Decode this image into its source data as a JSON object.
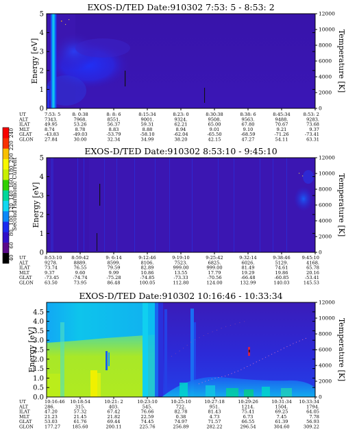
{
  "chart_data": {
    "type": "heatmap",
    "colorbar": {
      "title": "Second Harmonic Current",
      "ticks": [
        "40",
        "60",
        "80",
        "100",
        "120",
        "140",
        "160",
        "180",
        "200",
        "220",
        "240"
      ],
      "colors": [
        "#000000",
        "#5a0a8a",
        "#3010c8",
        "#1a2cf0",
        "#0a88f8",
        "#10d8f0",
        "#00d89a",
        "#30d000",
        "#c8f000",
        "#f8f800",
        "#f8c000",
        "#f83000",
        "#f80000"
      ]
    },
    "panels": [
      {
        "title": "EXOS-D/TED  Date:910302  7:53: 5 - 8:53: 2",
        "ylabel": "Energy [eV]",
        "y2label": "Temperature [K]",
        "ylim": [
          0,
          5
        ],
        "yticks": [
          "0",
          "1",
          "2",
          "3",
          "4",
          "5"
        ],
        "y2lim": [
          0,
          12000
        ],
        "y2ticks": [
          "0",
          "2000",
          "4000",
          "6000",
          "8000",
          "10000",
          "12000"
        ],
        "rows": [
          {
            "name": "UT",
            "values": [
              "7:53: 5",
              "8: 0:38",
              "8: 8: 6",
              "8:15:34",
              "8:23: 0",
              "8:30:38",
              "8:38: 6",
              "8:45:34",
              "8:53: 2"
            ]
          },
          {
            "name": "ALT",
            "values": [
              "7343.",
              "7968.",
              "8551.",
              "9001.",
              "9324.",
              "9508.",
              "9563.",
              "9488.",
              "9283."
            ]
          },
          {
            "name": "ILAT",
            "values": [
              "49.95",
              "53.26",
              "56.37",
              "59.31",
              "62.21",
              "65.00",
              "67.80",
              "70.67",
              "73.68"
            ]
          },
          {
            "name": "MLT",
            "values": [
              "8.74",
              "8.78",
              "8.83",
              "8.88",
              "8.94",
              "9.01",
              "9.10",
              "9.21",
              "9.37"
            ]
          },
          {
            "name": "GLAT",
            "values": [
              "-43.83",
              "-49.03",
              "-53.79",
              "-58.10",
              "-62.04",
              "-65.50",
              "-68.59",
              "-71.26",
              "-73.41"
            ]
          },
          {
            "name": "GLON",
            "values": [
              "27.84",
              "30.00",
              "32.34",
              "34.99",
              "38.20",
              "42.15",
              "47.27",
              "54.11",
              "63.31"
            ]
          }
        ]
      },
      {
        "title": "EXOS-D/TED  Date:910302  8:53:10 - 9:45:10",
        "ylabel": "Energy [eV]",
        "y2label": "Temperature [K]",
        "ylim": [
          0,
          5
        ],
        "yticks": [
          "0",
          "1",
          "2",
          "3",
          "4",
          "5"
        ],
        "y2lim": [
          0,
          12000
        ],
        "y2ticks": [
          "0",
          "2000",
          "4000",
          "6000",
          "8000",
          "10000",
          "12000"
        ],
        "rows": [
          {
            "name": "UT",
            "values": [
              "8:53:10",
              "8:59:42",
              "9: 6:14",
              "9:12:46",
              "9:19:10",
              "9:25:42",
              "9:32:14",
              "9:38:46",
              "9:45:10"
            ]
          },
          {
            "name": "ALT",
            "values": [
              "9278.",
              "8889.",
              "8599.",
              "8106.",
              "7523.",
              "6825.",
              "6026.",
              "5129.",
              "4168."
            ]
          },
          {
            "name": "ILAT",
            "values": [
              "73.74",
              "76.55",
              "79.59",
              "82.89",
              "999.00",
              "999.00",
              "81.49",
              "74.61",
              "65.78"
            ]
          },
          {
            "name": "MLT",
            "values": [
              "9.37",
              "9.60",
              "9.99",
              "10.86",
              "13.55",
              "17.79",
              "19.29",
              "19.86",
              "20.16"
            ]
          },
          {
            "name": "GLAT",
            "values": [
              "-73.45",
              "-74.74",
              "-75.28",
              "-74.85",
              "-73.33",
              "-70.56",
              "-66.48",
              "-60.85",
              "-53.41"
            ]
          },
          {
            "name": "GLON",
            "values": [
              "63.50",
              "73.95",
              "86.48",
              "100.05",
              "112.80",
              "124.00",
              "132.99",
              "140.03",
              "145.53"
            ]
          }
        ]
      },
      {
        "title": "EXOS-D/TED  Date:910302  10:16:46 - 10:33:34",
        "ylabel": "Energy [eV]",
        "y2label": "Temperature [K]",
        "ylim": [
          0,
          5
        ],
        "yticks": [
          "0.0",
          "0.5",
          "1.0",
          "1.5",
          "2.0",
          "2.5",
          "3.0",
          "3.5",
          "4.0",
          "4.5"
        ],
        "y2lim": [
          0,
          12000
        ],
        "y2ticks": [
          "0",
          "2000",
          "4000",
          "6000",
          "8000",
          "10000",
          "12000"
        ],
        "rows": [
          {
            "name": "UT",
            "values": [
              "10:16:46",
              "10:18:54",
              "10:21: 2",
              "10:23:10",
              "10:25:10",
              "10:27:18",
              "10:29:26",
              "10:31:34",
              "10:33:34"
            ]
          },
          {
            "name": "ALT",
            "values": [
              "286.",
              "315.",
              "403.",
              "545.",
              "722.",
              "951.",
              "1214.",
              "1504.",
              "1794."
            ]
          },
          {
            "name": "ILAT",
            "values": [
              "47.20",
              "57.32",
              "67.42",
              "76.66",
              "82.78",
              "81.43",
              "75.41",
              "69.25",
              "64.05"
            ]
          },
          {
            "name": "MLT",
            "values": [
              "21.23",
              "21.45",
              "21.82",
              "22.59",
              "0.38",
              "4.73",
              "6.73",
              "7.45",
              "7.78"
            ]
          },
          {
            "name": "GLAT",
            "values": [
              "53.03",
              "61.76",
              "69.44",
              "74.45",
              "74.97",
              "71.57",
              "66.55",
              "61.39",
              "56.93"
            ]
          },
          {
            "name": "GLON",
            "values": [
              "177.27",
              "185.60",
              "200.11",
              "225.76",
              "256.89",
              "282.22",
              "296.54",
              "304.60",
              "309.22"
            ]
          }
        ]
      }
    ]
  }
}
